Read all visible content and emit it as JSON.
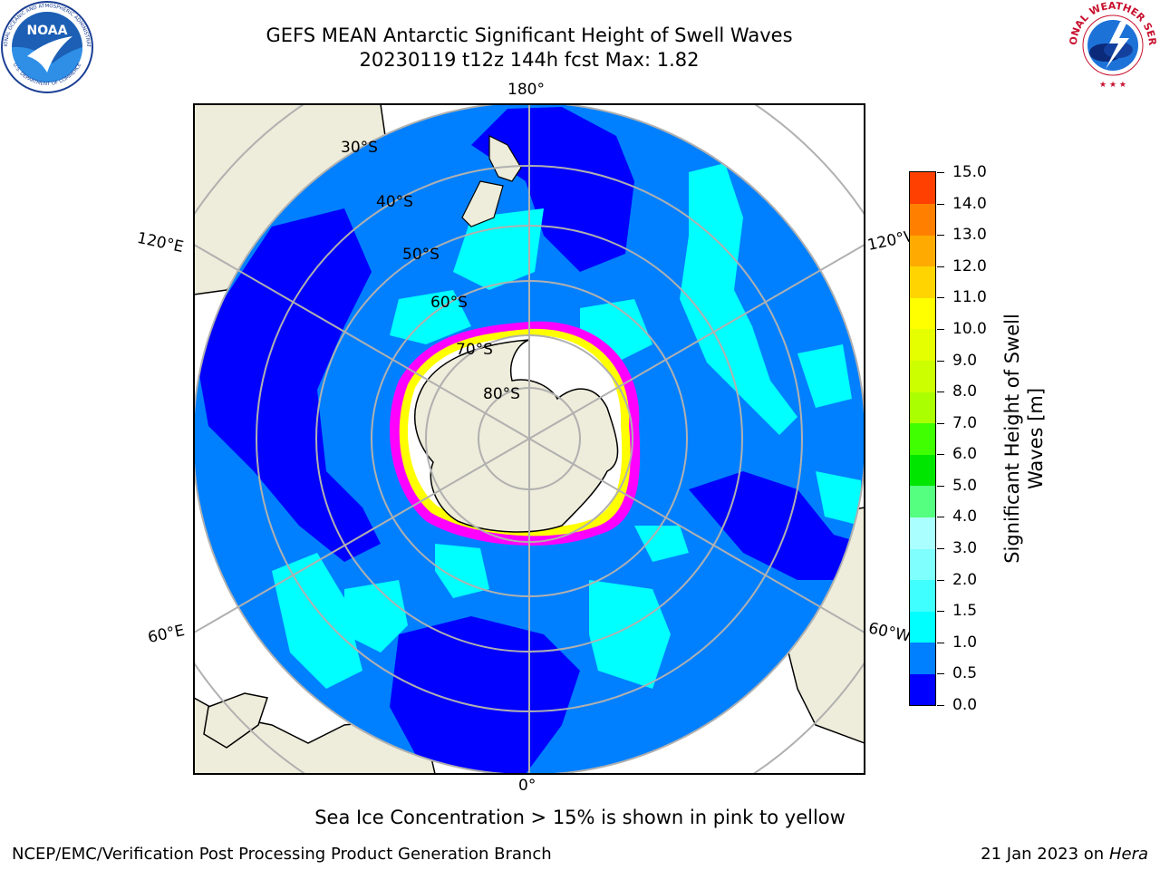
{
  "header": {
    "title_line1": "GEFS MEAN Antarctic Significant Height of Swell Waves",
    "title_line2": "20230119 t12z 144h fcst   Max: 1.82"
  },
  "logos": {
    "noaa": {
      "text": "NOAA",
      "ring_text": "NATIONAL OCEANIC AND ATMOSPHERIC ADMINISTRATION",
      "bottom_text": "U.S. DEPARTMENT OF COMMERCE"
    },
    "nws": {
      "ring_text": "NATIONAL WEATHER SERVICE"
    }
  },
  "map": {
    "projection": "south polar stereographic",
    "longitude_labels": {
      "top": "180°",
      "bottom": "0°",
      "upper_left": "120°E",
      "upper_right": "120°W",
      "lower_left": "60°E",
      "lower_right": "60°W"
    },
    "latitude_labels": [
      "30°S",
      "40°S",
      "50°S",
      "60°S",
      "70°S",
      "80°S"
    ],
    "land_color": "#eeecda",
    "ice_colors": [
      "#ff00ff",
      "#ffff00",
      "#ffffff"
    ]
  },
  "colorbar": {
    "title_line1": "Significant Height of Swell",
    "title_line2": "Waves [m]",
    "ticks": [
      "0.0",
      "0.5",
      "1.0",
      "1.5",
      "2.0",
      "3.0",
      "4.0",
      "5.0",
      "6.0",
      "7.0",
      "8.0",
      "9.0",
      "10.0",
      "11.0",
      "12.0",
      "13.0",
      "14.0",
      "15.0"
    ],
    "colors": [
      "#0000ff",
      "#0080ff",
      "#00ffff",
      "#40ffff",
      "#80ffff",
      "#aaffff",
      "#55ff80",
      "#00e600",
      "#40ff00",
      "#aaff00",
      "#ccff00",
      "#e6ff00",
      "#ffff00",
      "#ffd400",
      "#ffaa00",
      "#ff8000",
      "#ff4000",
      "#ff0000"
    ]
  },
  "footer": {
    "note": "Sea Ice Concentration > 15% is shown in pink to yellow",
    "left": "NCEP/EMC/Verification Post Processing Product Generation Branch",
    "right_prefix": "21 Jan 2023 on ",
    "right_italic": "Hera"
  }
}
